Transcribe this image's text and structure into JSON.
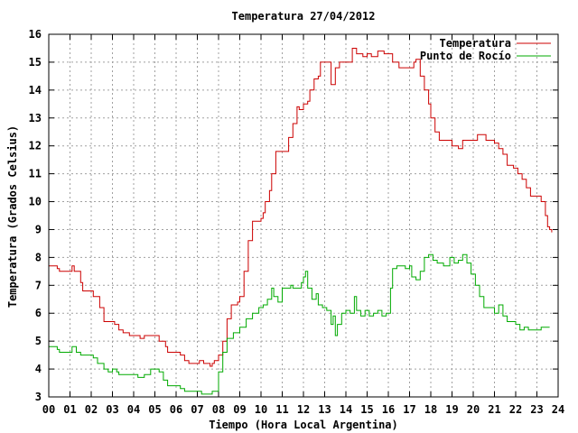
{
  "chart_data": {
    "type": "line",
    "title": "Temperatura 27/04/2012",
    "xlabel": "Tiempo (Hora Local Argentina)",
    "ylabel": "Temperatura (Grados Celsius)",
    "xlim": [
      0,
      24
    ],
    "ylim": [
      3,
      16
    ],
    "x_ticks": [
      0,
      1,
      2,
      3,
      4,
      5,
      6,
      7,
      8,
      9,
      10,
      11,
      12,
      13,
      14,
      15,
      16,
      17,
      18,
      19,
      20,
      21,
      22,
      23,
      24
    ],
    "x_tick_labels": [
      "00",
      "01",
      "02",
      "03",
      "04",
      "05",
      "06",
      "07",
      "08",
      "09",
      "10",
      "11",
      "12",
      "13",
      "14",
      "15",
      "16",
      "17",
      "18",
      "19",
      "20",
      "21",
      "22",
      "23",
      "24"
    ],
    "y_ticks": [
      3,
      4,
      5,
      6,
      7,
      8,
      9,
      10,
      11,
      12,
      13,
      14,
      15,
      16
    ],
    "y_tick_labels": [
      "3",
      "4",
      "5",
      "6",
      "7",
      "8",
      "9",
      "10",
      "11",
      "12",
      "13",
      "14",
      "15",
      "16"
    ],
    "grid": true,
    "legend_position": "top-right",
    "series": [
      {
        "name": "Temperatura",
        "color": "#cc0000",
        "points": [
          [
            0.0,
            7.7
          ],
          [
            0.4,
            7.6
          ],
          [
            0.5,
            7.5
          ],
          [
            1.0,
            7.5
          ],
          [
            1.1,
            7.7
          ],
          [
            1.2,
            7.5
          ],
          [
            1.5,
            7.1
          ],
          [
            1.6,
            6.8
          ],
          [
            2.0,
            6.8
          ],
          [
            2.1,
            6.6
          ],
          [
            2.4,
            6.2
          ],
          [
            2.6,
            5.7
          ],
          [
            3.0,
            5.7
          ],
          [
            3.1,
            5.6
          ],
          [
            3.3,
            5.4
          ],
          [
            3.5,
            5.3
          ],
          [
            3.8,
            5.2
          ],
          [
            4.0,
            5.2
          ],
          [
            4.3,
            5.1
          ],
          [
            4.5,
            5.2
          ],
          [
            5.0,
            5.2
          ],
          [
            5.2,
            5.0
          ],
          [
            5.5,
            4.8
          ],
          [
            5.6,
            4.6
          ],
          [
            6.0,
            4.6
          ],
          [
            6.2,
            4.5
          ],
          [
            6.4,
            4.3
          ],
          [
            6.6,
            4.2
          ],
          [
            7.0,
            4.2
          ],
          [
            7.1,
            4.3
          ],
          [
            7.3,
            4.2
          ],
          [
            7.5,
            4.2
          ],
          [
            7.6,
            4.1
          ],
          [
            7.7,
            4.2
          ],
          [
            7.8,
            4.3
          ],
          [
            8.0,
            4.5
          ],
          [
            8.2,
            5.0
          ],
          [
            8.4,
            5.8
          ],
          [
            8.6,
            6.3
          ],
          [
            8.9,
            6.4
          ],
          [
            9.0,
            6.6
          ],
          [
            9.2,
            7.5
          ],
          [
            9.4,
            8.6
          ],
          [
            9.6,
            9.3
          ],
          [
            10.0,
            9.4
          ],
          [
            10.1,
            9.6
          ],
          [
            10.2,
            10.0
          ],
          [
            10.4,
            10.4
          ],
          [
            10.5,
            11.0
          ],
          [
            10.7,
            11.8
          ],
          [
            11.0,
            11.8
          ],
          [
            11.3,
            12.3
          ],
          [
            11.5,
            12.8
          ],
          [
            11.7,
            13.4
          ],
          [
            11.8,
            13.3
          ],
          [
            12.0,
            13.5
          ],
          [
            12.2,
            13.6
          ],
          [
            12.3,
            14.0
          ],
          [
            12.5,
            14.4
          ],
          [
            12.7,
            14.5
          ],
          [
            12.8,
            15.0
          ],
          [
            13.0,
            15.0
          ],
          [
            13.2,
            15.0
          ],
          [
            13.3,
            14.2
          ],
          [
            13.5,
            14.8
          ],
          [
            13.7,
            15.0
          ],
          [
            14.0,
            15.0
          ],
          [
            14.2,
            15.0
          ],
          [
            14.3,
            15.5
          ],
          [
            14.5,
            15.3
          ],
          [
            14.8,
            15.2
          ],
          [
            15.0,
            15.3
          ],
          [
            15.2,
            15.2
          ],
          [
            15.5,
            15.4
          ],
          [
            15.8,
            15.3
          ],
          [
            16.0,
            15.3
          ],
          [
            16.2,
            15.0
          ],
          [
            16.5,
            14.8
          ],
          [
            17.0,
            14.8
          ],
          [
            17.2,
            15.0
          ],
          [
            17.3,
            15.1
          ],
          [
            17.5,
            14.5
          ],
          [
            17.7,
            14.0
          ],
          [
            17.9,
            13.5
          ],
          [
            18.0,
            13.0
          ],
          [
            18.2,
            12.5
          ],
          [
            18.4,
            12.2
          ],
          [
            18.7,
            12.2
          ],
          [
            19.0,
            12.0
          ],
          [
            19.3,
            11.9
          ],
          [
            19.5,
            12.2
          ],
          [
            20.0,
            12.2
          ],
          [
            20.2,
            12.4
          ],
          [
            20.4,
            12.4
          ],
          [
            20.6,
            12.2
          ],
          [
            21.0,
            12.1
          ],
          [
            21.2,
            11.9
          ],
          [
            21.4,
            11.7
          ],
          [
            21.6,
            11.3
          ],
          [
            21.9,
            11.2
          ],
          [
            22.0,
            11.2
          ],
          [
            22.1,
            11.0
          ],
          [
            22.3,
            10.8
          ],
          [
            22.5,
            10.5
          ],
          [
            22.7,
            10.2
          ],
          [
            23.0,
            10.2
          ],
          [
            23.2,
            10.0
          ],
          [
            23.4,
            9.5
          ],
          [
            23.5,
            9.1
          ],
          [
            23.6,
            9.0
          ],
          [
            23.7,
            8.9
          ]
        ]
      },
      {
        "name": "Punto de Rocío",
        "color": "#00aa00",
        "points": [
          [
            0.0,
            4.8
          ],
          [
            0.4,
            4.7
          ],
          [
            0.5,
            4.6
          ],
          [
            1.0,
            4.6
          ],
          [
            1.1,
            4.8
          ],
          [
            1.3,
            4.6
          ],
          [
            1.5,
            4.5
          ],
          [
            2.0,
            4.5
          ],
          [
            2.1,
            4.4
          ],
          [
            2.3,
            4.2
          ],
          [
            2.6,
            4.0
          ],
          [
            2.8,
            3.9
          ],
          [
            3.0,
            4.0
          ],
          [
            3.2,
            3.9
          ],
          [
            3.3,
            3.8
          ],
          [
            3.6,
            3.8
          ],
          [
            4.0,
            3.8
          ],
          [
            4.2,
            3.7
          ],
          [
            4.5,
            3.8
          ],
          [
            4.8,
            4.0
          ],
          [
            5.0,
            4.0
          ],
          [
            5.2,
            3.9
          ],
          [
            5.4,
            3.6
          ],
          [
            5.6,
            3.4
          ],
          [
            6.0,
            3.4
          ],
          [
            6.2,
            3.3
          ],
          [
            6.4,
            3.2
          ],
          [
            7.0,
            3.2
          ],
          [
            7.2,
            3.1
          ],
          [
            7.5,
            3.1
          ],
          [
            7.7,
            3.2
          ],
          [
            8.0,
            3.9
          ],
          [
            8.2,
            4.6
          ],
          [
            8.4,
            5.1
          ],
          [
            8.7,
            5.3
          ],
          [
            9.0,
            5.5
          ],
          [
            9.3,
            5.8
          ],
          [
            9.6,
            6.0
          ],
          [
            9.9,
            6.2
          ],
          [
            10.1,
            6.3
          ],
          [
            10.3,
            6.5
          ],
          [
            10.5,
            6.9
          ],
          [
            10.6,
            6.6
          ],
          [
            10.8,
            6.4
          ],
          [
            11.0,
            6.9
          ],
          [
            11.2,
            6.9
          ],
          [
            11.4,
            7.0
          ],
          [
            11.5,
            6.9
          ],
          [
            11.7,
            6.9
          ],
          [
            11.9,
            7.1
          ],
          [
            12.0,
            7.3
          ],
          [
            12.1,
            7.5
          ],
          [
            12.2,
            6.9
          ],
          [
            12.4,
            6.5
          ],
          [
            12.6,
            6.7
          ],
          [
            12.7,
            6.3
          ],
          [
            12.9,
            6.2
          ],
          [
            13.1,
            6.1
          ],
          [
            13.3,
            5.6
          ],
          [
            13.4,
            5.9
          ],
          [
            13.5,
            5.2
          ],
          [
            13.6,
            5.6
          ],
          [
            13.8,
            6.0
          ],
          [
            14.0,
            6.1
          ],
          [
            14.2,
            6.0
          ],
          [
            14.4,
            6.6
          ],
          [
            14.5,
            6.1
          ],
          [
            14.7,
            5.9
          ],
          [
            14.9,
            6.1
          ],
          [
            15.1,
            5.9
          ],
          [
            15.3,
            6.0
          ],
          [
            15.5,
            6.1
          ],
          [
            15.7,
            5.9
          ],
          [
            15.9,
            6.0
          ],
          [
            16.1,
            6.9
          ],
          [
            16.2,
            7.6
          ],
          [
            16.4,
            7.7
          ],
          [
            16.6,
            7.7
          ],
          [
            16.8,
            7.6
          ],
          [
            17.0,
            7.7
          ],
          [
            17.1,
            7.3
          ],
          [
            17.3,
            7.2
          ],
          [
            17.5,
            7.5
          ],
          [
            17.7,
            8.0
          ],
          [
            17.9,
            8.1
          ],
          [
            18.1,
            7.9
          ],
          [
            18.3,
            7.8
          ],
          [
            18.6,
            7.7
          ],
          [
            18.9,
            8.0
          ],
          [
            19.1,
            7.8
          ],
          [
            19.3,
            7.9
          ],
          [
            19.5,
            8.1
          ],
          [
            19.7,
            7.8
          ],
          [
            19.9,
            7.4
          ],
          [
            20.1,
            7.0
          ],
          [
            20.3,
            6.6
          ],
          [
            20.5,
            6.2
          ],
          [
            20.7,
            6.2
          ],
          [
            21.0,
            6.0
          ],
          [
            21.2,
            6.3
          ],
          [
            21.4,
            5.9
          ],
          [
            21.6,
            5.7
          ],
          [
            21.8,
            5.7
          ],
          [
            22.0,
            5.6
          ],
          [
            22.2,
            5.4
          ],
          [
            22.4,
            5.5
          ],
          [
            22.6,
            5.4
          ],
          [
            22.8,
            5.4
          ],
          [
            23.0,
            5.4
          ],
          [
            23.2,
            5.5
          ],
          [
            23.4,
            5.5
          ],
          [
            23.6,
            5.5
          ]
        ]
      }
    ]
  }
}
